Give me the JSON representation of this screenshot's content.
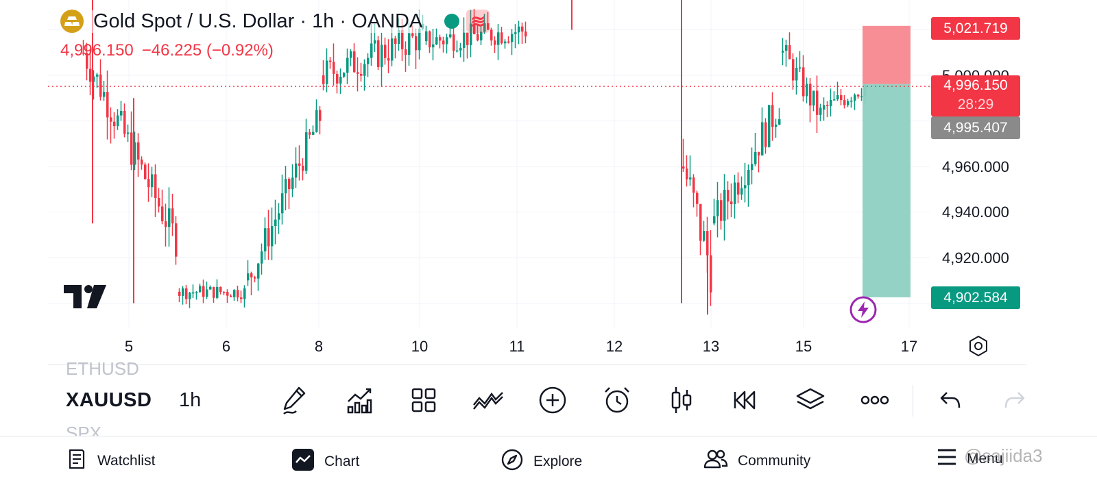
{
  "header": {
    "title": "Gold Spot / U.S. Dollar · 1h · OANDA",
    "last_price": "4,996.150",
    "change": "−46.225 (−0.92%)",
    "wave_icon": "≋"
  },
  "price_axis": {
    "labels": [
      "5,000.000",
      "4,960.000",
      "4,940.000",
      "4,920.000"
    ],
    "target_label": "5,021.719",
    "current_price_label": "4,996.150",
    "countdown": "28:29",
    "grey_label": "4,995.407",
    "stop_label": "4,902.584"
  },
  "time_axis": {
    "labels": [
      "5",
      "6",
      "8",
      "10",
      "11",
      "12",
      "13",
      "15",
      "17"
    ]
  },
  "toolbar": {
    "symbol": "XAUUSD",
    "timeframe": "1h",
    "ghost_above": "ETHUSD",
    "ghost_below": "SPX",
    "tools": [
      {
        "name": "drawing-pencil-icon"
      },
      {
        "name": "indicators-icon"
      },
      {
        "name": "layouts-grid-icon"
      },
      {
        "name": "templates-icon"
      },
      {
        "name": "add-plus-icon"
      },
      {
        "name": "alarm-clock-icon"
      },
      {
        "name": "candlestick-type-icon"
      },
      {
        "name": "replay-icon"
      },
      {
        "name": "layers-icon"
      },
      {
        "name": "more-icon"
      },
      {
        "name": "undo-icon"
      },
      {
        "name": "redo-icon"
      }
    ]
  },
  "bottom_nav": {
    "watchlist": "Watchlist",
    "chart": "Chart",
    "explore": "Explore",
    "community": "Community",
    "menu": "Menu"
  },
  "watermark": "@sajiida3",
  "colors": {
    "up": "#089981",
    "down": "#F23645",
    "target_zone": "#F7888F",
    "stop_zone": "#8ED0C2",
    "grey": "#8A8A8A"
  },
  "chart_data": {
    "type": "candlestick",
    "symbol": "XAUUSD",
    "timeframe": "1h",
    "y_ticks": [
      5000,
      4960,
      4940,
      4920
    ],
    "last_price": 4996.15,
    "target_price": 5021.719,
    "stop_price": 4902.584,
    "grey_price": 4995.407,
    "x_ticks": [
      "5",
      "6",
      "8",
      "10",
      "11",
      "12",
      "13",
      "15",
      "17"
    ]
  }
}
